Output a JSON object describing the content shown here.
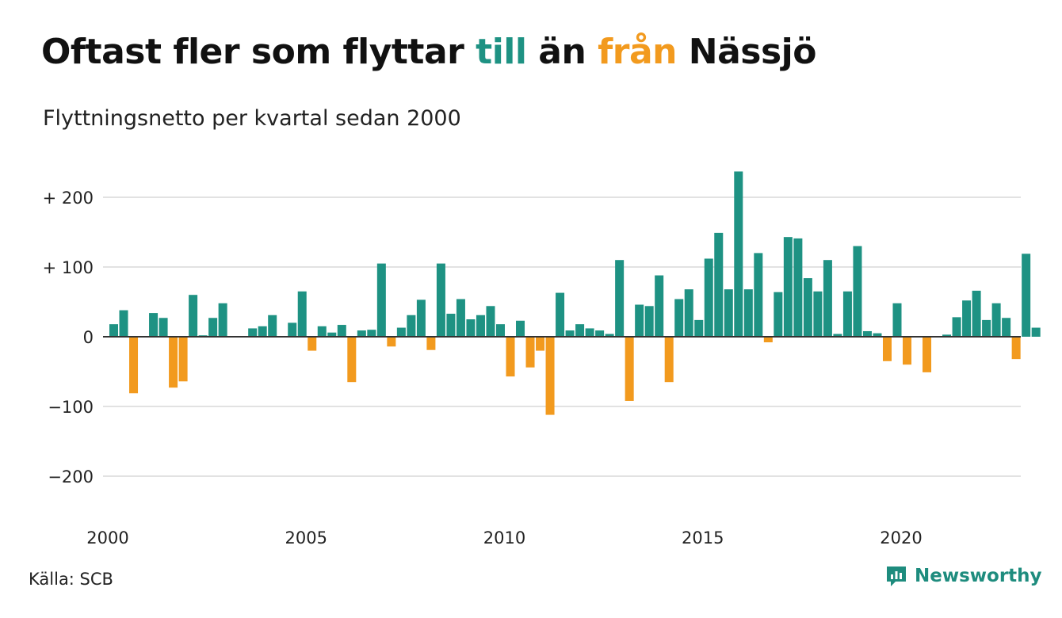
{
  "title": {
    "part1": "Oftast fler som flyttar ",
    "pos_word": "till",
    "part2": " än ",
    "neg_word": "från",
    "part3": " Nässjö"
  },
  "subtitle": "Flyttningsnetto per kvartal sedan 2000",
  "source": "Källa: SCB",
  "brand": {
    "name": "Newsworthy",
    "icon": "newsworthy-logo-icon"
  },
  "colors": {
    "positive": "#1e9283",
    "negative": "#f29a1e",
    "grid": "#e2e2e2",
    "axis": "#333333"
  },
  "chart_data": {
    "type": "bar",
    "title": "Oftast fler som flyttar till än från Nässjö",
    "subtitle": "Flyttningsnetto per kvartal sedan 2000",
    "xlabel": "",
    "ylabel": "",
    "ylim": [
      -250,
      250
    ],
    "xlim": [
      2000.0,
      2023.0
    ],
    "yticks": [
      200,
      100,
      0,
      -100,
      -200
    ],
    "ytick_labels": [
      "+ 200",
      "+ 100",
      "0",
      "−100",
      "−200"
    ],
    "xticks": [
      2000,
      2005,
      2010,
      2015,
      2020
    ],
    "xtick_labels": [
      "2000",
      "2005",
      "2010",
      "2015",
      "2020"
    ],
    "grid": true,
    "legend": "none",
    "start_quarter": "2000 Q1",
    "quarters_per_year": 4,
    "values": [
      18,
      38,
      -81,
      0,
      34,
      27,
      -73,
      -64,
      60,
      2,
      27,
      48,
      0,
      0,
      12,
      15,
      31,
      -1,
      20,
      65,
      -20,
      15,
      6,
      17,
      -65,
      9,
      10,
      105,
      -14,
      13,
      31,
      53,
      -19,
      105,
      33,
      54,
      25,
      31,
      44,
      18,
      -57,
      23,
      -44,
      -20,
      -112,
      63,
      9,
      18,
      12,
      9,
      4,
      110,
      -92,
      46,
      44,
      88,
      -65,
      54,
      68,
      24,
      112,
      149,
      68,
      237,
      68,
      120,
      -8,
      64,
      143,
      141,
      84,
      65,
      110,
      4,
      65,
      130,
      8,
      5,
      -35,
      48,
      -40,
      0,
      -51,
      0,
      3,
      28,
      52,
      66,
      24,
      48,
      27,
      -32,
      119,
      13
    ]
  }
}
